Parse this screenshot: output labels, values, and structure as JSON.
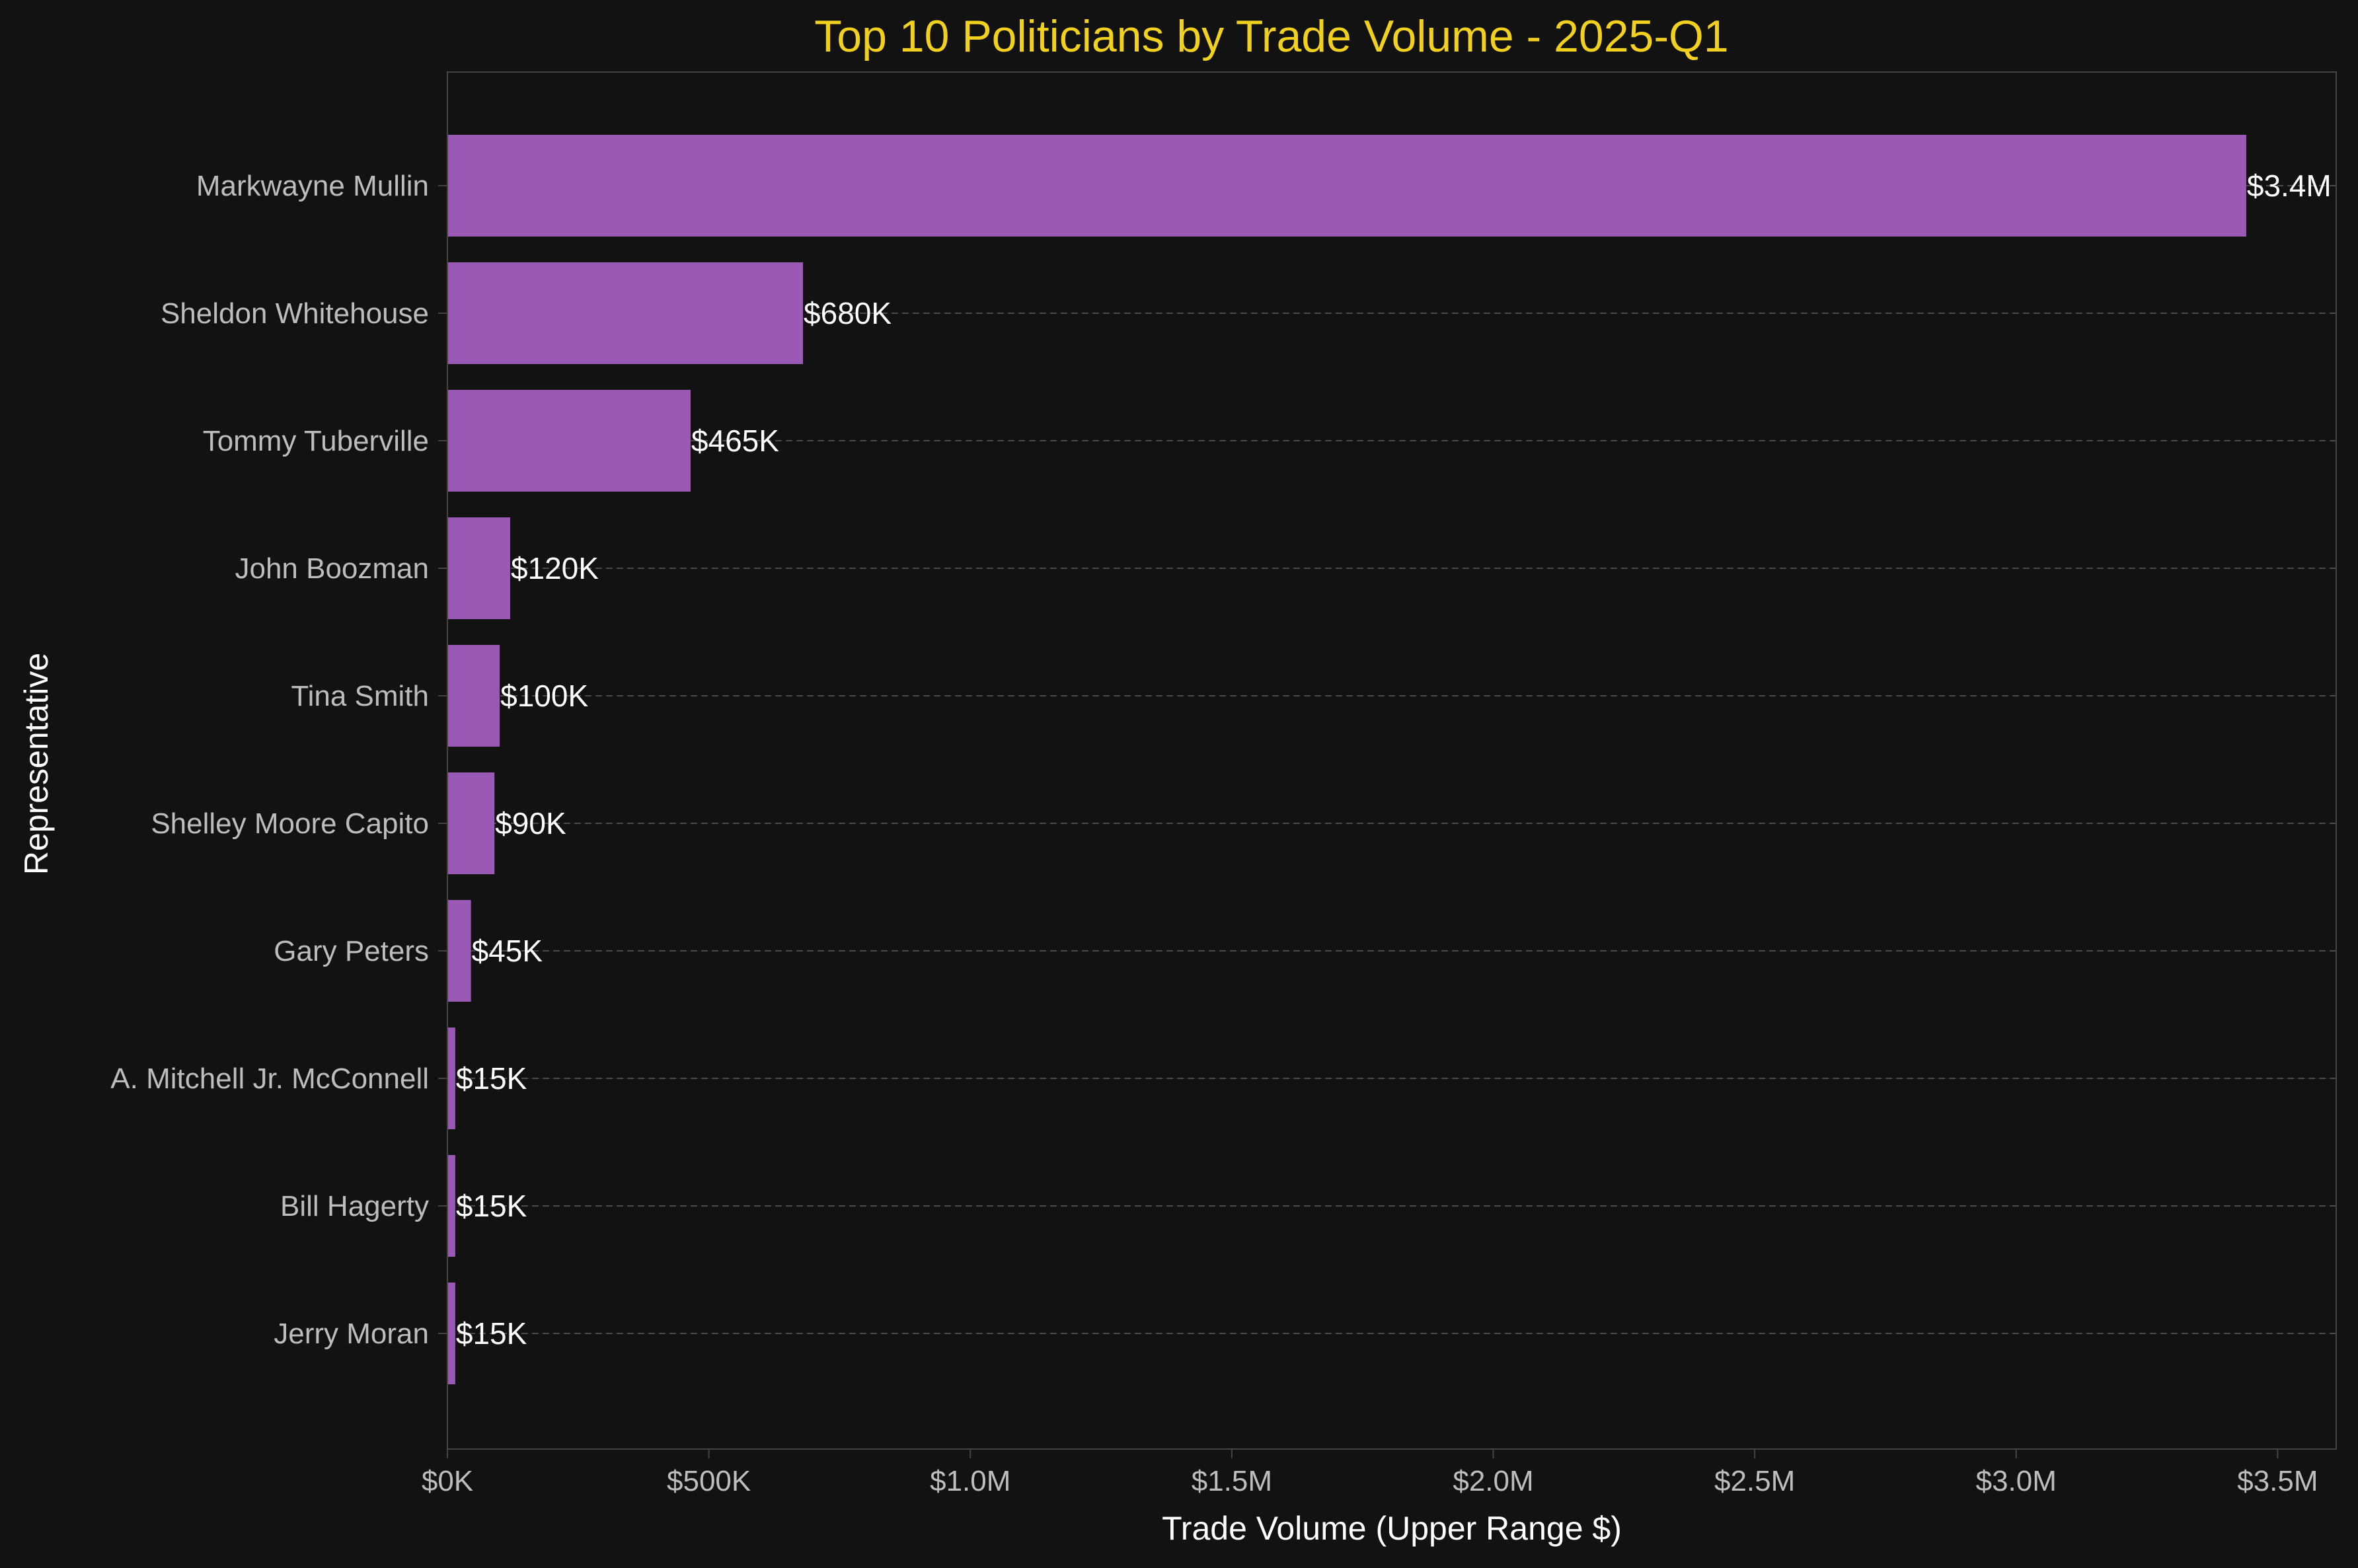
{
  "colors": {
    "background": "#121212",
    "title": "#f2d01e",
    "bar": "#9b59b6",
    "axis_label": "#ffffff",
    "tick_label": "#bdbdbd",
    "bar_label": "#ffffff",
    "spine": "#444444",
    "grid": "#4a4a4a"
  },
  "chart_data": {
    "type": "bar",
    "orientation": "horizontal",
    "title": "Top 10 Politicians by Trade Volume - 2025-Q1",
    "xlabel": "Trade Volume (Upper Range $)",
    "ylabel": "Representative",
    "categories": [
      "Markwayne Mullin",
      "Sheldon Whitehouse",
      "Tommy Tuberville",
      "John Boozman",
      "Tina Smith",
      "Shelley Moore Capito",
      "Gary Peters",
      "A. Mitchell Jr. McConnell",
      "Bill Hagerty",
      "Jerry Moran"
    ],
    "values": [
      3440000,
      680000,
      465000,
      120000,
      100000,
      90000,
      45000,
      15000,
      15000,
      15000
    ],
    "value_labels": [
      "$3.4M",
      "$680K",
      "$465K",
      "$120K",
      "$100K",
      "$90K",
      "$45K",
      "$15K",
      "$15K",
      "$15K"
    ],
    "xlim": [
      0,
      3612000
    ],
    "xticks": [
      0,
      500000,
      1000000,
      1500000,
      2000000,
      2500000,
      3000000,
      3500000
    ],
    "xtick_labels": [
      "$0K",
      "$500K",
      "$1.0M",
      "$1.5M",
      "$2.0M",
      "$2.5M",
      "$3.0M",
      "$3.5M"
    ],
    "grid": "horizontal dashed lines at each bar",
    "legend": "none"
  }
}
